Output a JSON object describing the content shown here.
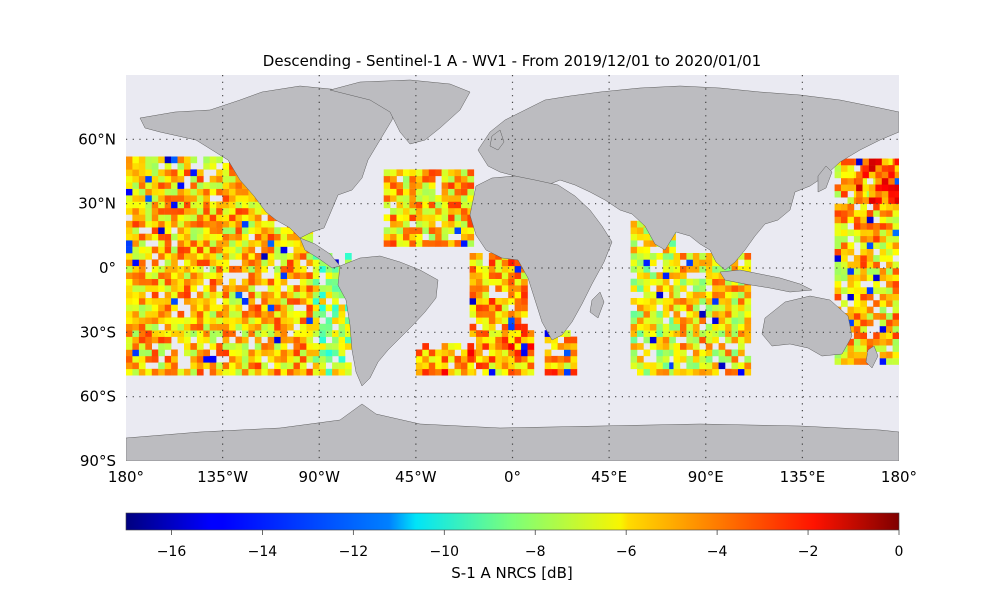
{
  "title": "Descending - Sentinel-1 A - WV1 - From 2019/12/01 to 2020/01/01",
  "map": {
    "projection": "equirectangular",
    "lon_range": [
      -180,
      180
    ],
    "lat_range": [
      -90,
      90
    ],
    "background_color": "#eaeaf2",
    "land_color": "#bcbcc0",
    "grid": "dotted",
    "y_ticks": [
      {
        "lat": 60,
        "label": "60°N"
      },
      {
        "lat": 30,
        "label": "30°N"
      },
      {
        "lat": 0,
        "label": "0°"
      },
      {
        "lat": -30,
        "label": "30°S"
      },
      {
        "lat": -60,
        "label": "60°S"
      },
      {
        "lat": -90,
        "label": "90°S"
      }
    ],
    "x_ticks": [
      {
        "lon": -180,
        "label": "180°"
      },
      {
        "lon": -135,
        "label": "135°W"
      },
      {
        "lon": -90,
        "label": "90°W"
      },
      {
        "lon": -45,
        "label": "45°W"
      },
      {
        "lon": 0,
        "label": "0°"
      },
      {
        "lon": 45,
        "label": "45°E"
      },
      {
        "lon": 90,
        "label": "90°E"
      },
      {
        "lon": 135,
        "label": "135°E"
      },
      {
        "lon": 180,
        "label": "180°"
      }
    ]
  },
  "chart_data": {
    "type": "heatmap",
    "value_range": [
      -17,
      0
    ],
    "colormap": "jet",
    "data_lat_range": [
      -50,
      50
    ],
    "colorbar": {
      "label": "S-1 A NRCS [dB]",
      "ticks": [
        {
          "v": -16,
          "label": "−16"
        },
        {
          "v": -14,
          "label": "−14"
        },
        {
          "v": -12,
          "label": "−12"
        },
        {
          "v": -10,
          "label": "−10"
        },
        {
          "v": -8,
          "label": "−8"
        },
        {
          "v": -6,
          "label": "−6"
        },
        {
          "v": -4,
          "label": "−4"
        },
        {
          "v": -2,
          "label": "−2"
        },
        {
          "v": 0,
          "label": "0"
        }
      ]
    },
    "swath_regions": [
      {
        "lon": [
          -180,
          -93
        ],
        "lat": [
          -50,
          50
        ],
        "mean": -5.5
      },
      {
        "lon": [
          -93,
          -77
        ],
        "lat": [
          -50,
          5
        ],
        "mean": -7.5
      },
      {
        "lon": [
          -60,
          -20
        ],
        "lat": [
          10,
          45
        ],
        "mean": -5.5
      },
      {
        "lon": [
          -20,
          5
        ],
        "lat": [
          -50,
          5
        ],
        "mean": -5.0
      },
      {
        "lon": [
          -45,
          -20
        ],
        "lat": [
          -50,
          -35
        ],
        "mean": -4.5
      },
      {
        "lon": [
          -5,
          10
        ],
        "lat": [
          -50,
          -30
        ],
        "mean": -4.5
      },
      {
        "lon": [
          15,
          30
        ],
        "lat": [
          -50,
          -30
        ],
        "mean": -5.0
      },
      {
        "lon": [
          55,
          75
        ],
        "lat": [
          -50,
          20
        ],
        "mean": -6.5
      },
      {
        "lon": [
          75,
          110
        ],
        "lat": [
          -50,
          5
        ],
        "mean": -6.0
      },
      {
        "lon": [
          150,
          180
        ],
        "lat": [
          -45,
          50
        ],
        "mean": -5.5
      },
      {
        "lon": [
          160,
          180
        ],
        "lat": [
          30,
          50
        ],
        "mean": -3.5
      }
    ]
  }
}
